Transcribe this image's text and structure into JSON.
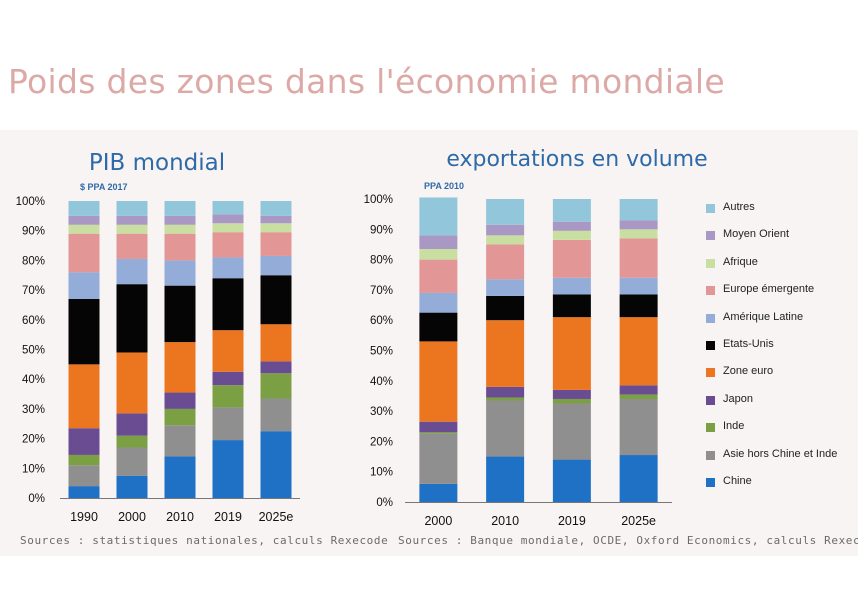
{
  "page_title": "Poids des zones dans l'économie mondiale",
  "colors": {
    "Chine": "#1f71c6",
    "Asie hors Chine et Inde": "#8f8f8f",
    "Inde": "#7ba043",
    "Japon": "#6a4c93",
    "Zone euro": "#ec7520",
    "Etats-Unis": "#050505",
    "Amérique Latine": "#93acd8",
    "Europe émergente": "#e39696",
    "Afrique": "#c9dfa2",
    "Moyen Orient": "#a998c4",
    "Autres": "#92c6da"
  },
  "legend": [
    "Autres",
    "Moyen Orient",
    "Afrique",
    "Europe émergente",
    "Amérique Latine",
    "Etats-Unis",
    "Zone euro",
    "Japon",
    "Inde",
    "Asie hors Chine et Inde",
    "Chine"
  ],
  "chart_data": [
    {
      "type": "bar",
      "stacked": true,
      "title": "PIB mondial",
      "subtitle": "$ PPA 2017",
      "source": "Sources : statistiques nationales, calculs Rexecode",
      "categories": [
        "1990",
        "2000",
        "2010",
        "2019",
        "2025e"
      ],
      "ylim": [
        0,
        100
      ],
      "yticks": [
        "0%",
        "10%",
        "20%",
        "30%",
        "40%",
        "50%",
        "60%",
        "70%",
        "80%",
        "90%",
        "100%"
      ],
      "series": [
        {
          "name": "Chine",
          "values": [
            4,
            7.5,
            14,
            19.5,
            22.5
          ]
        },
        {
          "name": "Asie hors Chine et Inde",
          "values": [
            7,
            9.5,
            10.5,
            11,
            11
          ]
        },
        {
          "name": "Inde",
          "values": [
            3.5,
            4,
            5.5,
            7.5,
            8.5
          ]
        },
        {
          "name": "Japon",
          "values": [
            9,
            7.5,
            5.5,
            4.5,
            4
          ]
        },
        {
          "name": "Zone euro",
          "values": [
            21.5,
            20.5,
            17,
            14,
            12.5
          ]
        },
        {
          "name": "Etats-Unis",
          "values": [
            22,
            23,
            19,
            17.5,
            16.5
          ]
        },
        {
          "name": "Amérique Latine",
          "values": [
            9,
            8.5,
            8.5,
            7,
            6.5
          ]
        },
        {
          "name": "Europe émergente",
          "values": [
            13,
            8.5,
            9,
            8.5,
            8
          ]
        },
        {
          "name": "Afrique",
          "values": [
            3,
            3,
            3,
            3,
            3
          ]
        },
        {
          "name": "Moyen Orient",
          "values": [
            3,
            3,
            3,
            3,
            2.5
          ]
        },
        {
          "name": "Autres",
          "values": [
            5,
            5,
            5,
            4.5,
            5
          ]
        }
      ]
    },
    {
      "type": "bar",
      "stacked": true,
      "title": "exportations en volume",
      "subtitle": "PPA 2010",
      "source": "Sources : Banque mondiale, OCDE, Oxford Economics, calculs Rexecode",
      "categories": [
        "2000",
        "2010",
        "2019",
        "2025e"
      ],
      "ylim": [
        0,
        100
      ],
      "yticks": [
        "0%",
        "10%",
        "20%",
        "30%",
        "40%",
        "50%",
        "60%",
        "70%",
        "80%",
        "90%",
        "100%"
      ],
      "series": [
        {
          "name": "Chine",
          "values": [
            6,
            15,
            14,
            15.5
          ]
        },
        {
          "name": "Asie hors Chine et Inde",
          "values": [
            16.5,
            18.5,
            18.5,
            18.5
          ]
        },
        {
          "name": "Inde",
          "values": [
            0.5,
            1,
            1.5,
            1.5
          ]
        },
        {
          "name": "Japon",
          "values": [
            3.5,
            3.5,
            3,
            3
          ]
        },
        {
          "name": "Zone euro",
          "values": [
            26.5,
            22,
            24,
            22.5
          ]
        },
        {
          "name": "Etats-Unis",
          "values": [
            9.5,
            8,
            7.5,
            7.5
          ]
        },
        {
          "name": "Amérique Latine",
          "values": [
            6.5,
            5.5,
            5.5,
            5.5
          ]
        },
        {
          "name": "Europe émergente",
          "values": [
            11,
            11.5,
            12.5,
            13
          ]
        },
        {
          "name": "Afrique",
          "values": [
            3.5,
            3,
            3,
            3
          ]
        },
        {
          "name": "Moyen Orient",
          "values": [
            4.5,
            3.5,
            3,
            3
          ]
        },
        {
          "name": "Autres",
          "values": [
            12.5,
            8.5,
            7.5,
            7
          ]
        }
      ]
    }
  ]
}
